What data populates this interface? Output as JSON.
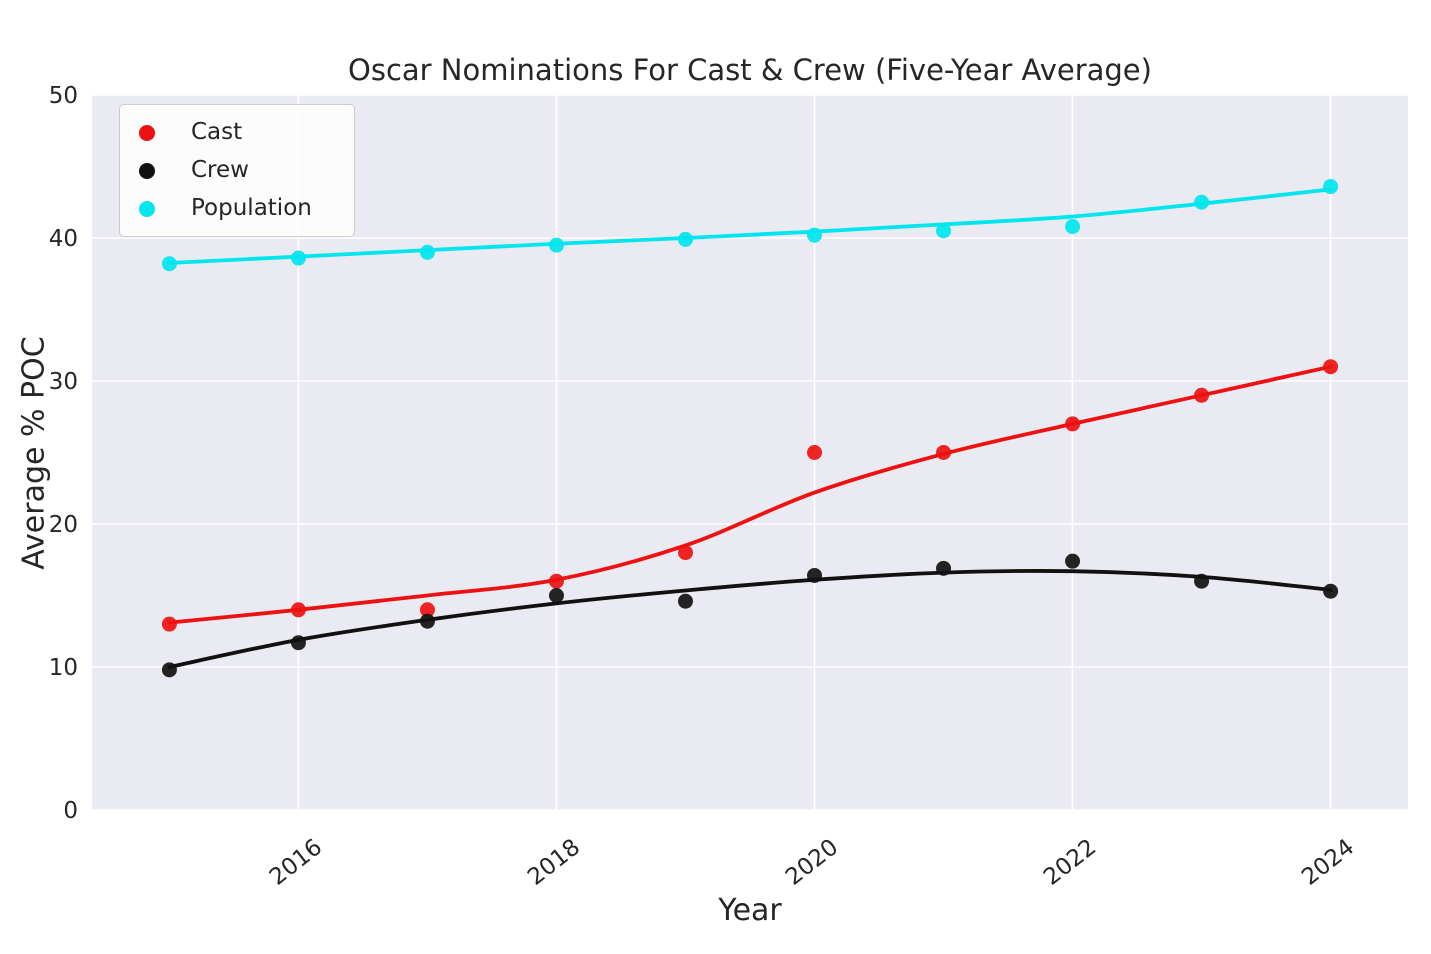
{
  "figure": {
    "title": "Oscar Nominations For Cast & Crew (Five-Year Average)",
    "xlabel": "Year",
    "ylabel": "Average % POC"
  },
  "legend": {
    "entries": [
      {
        "label": "Cast",
        "color": "#ee1111"
      },
      {
        "label": "Crew",
        "color": "#111111"
      },
      {
        "label": "Population",
        "color": "#00e5ee"
      }
    ]
  },
  "chart_data": {
    "type": "scatter",
    "title": "Oscar Nominations For Cast & Crew (Five-Year Average)",
    "xlabel": "Year",
    "ylabel": "Average % POC",
    "x": [
      2015,
      2016,
      2017,
      2018,
      2019,
      2020,
      2021,
      2022,
      2023,
      2024
    ],
    "xticks": [
      2016,
      2018,
      2020,
      2022,
      2024
    ],
    "yticks": [
      0,
      10,
      20,
      30,
      40,
      50
    ],
    "xlim": [
      2014.4,
      2024.6
    ],
    "ylim": [
      0,
      50
    ],
    "grid": true,
    "plot_background": "#eaeaf2",
    "gridline_color": "#ffffff",
    "legend_position": "upper left",
    "series": [
      {
        "name": "Cast",
        "color": "#ee1111",
        "scatter": [
          13,
          14,
          14,
          16,
          18,
          25,
          25,
          27,
          29,
          31
        ],
        "trend": [
          13.1,
          14.0,
          15.0,
          16.1,
          18.5,
          22.2,
          24.9,
          27.0,
          29.0,
          31.0
        ]
      },
      {
        "name": "Crew",
        "color": "#111111",
        "scatter": [
          9.8,
          11.7,
          13.2,
          15.0,
          14.6,
          16.4,
          16.9,
          17.4,
          16.0,
          15.3
        ],
        "trend": [
          10.0,
          11.9,
          13.3,
          14.45,
          15.35,
          16.1,
          16.6,
          16.7,
          16.3,
          15.4
        ]
      },
      {
        "name": "Population",
        "color": "#00e5ee",
        "scatter": [
          38.2,
          38.6,
          39.0,
          39.5,
          39.9,
          40.2,
          40.5,
          40.8,
          42.5,
          43.6
        ],
        "trend": [
          38.25,
          38.7,
          39.15,
          39.6,
          40.0,
          40.45,
          40.95,
          41.5,
          42.4,
          43.4
        ]
      }
    ]
  }
}
